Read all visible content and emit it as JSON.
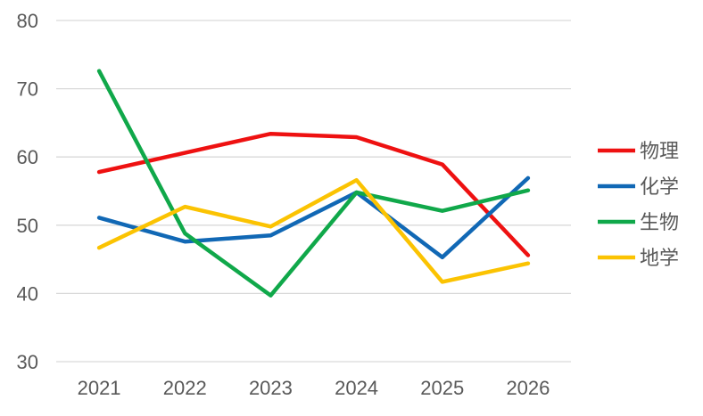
{
  "chart_data": {
    "type": "line",
    "categories": [
      "2021",
      "2022",
      "2023",
      "2024",
      "2025",
      "2026"
    ],
    "ylim": [
      30,
      80
    ],
    "yticks": [
      30,
      40,
      50,
      60,
      70,
      80
    ],
    "grid": true,
    "legend_position": "right",
    "series": [
      {
        "name": "物理",
        "color": "#ee1111",
        "values": [
          57.8,
          60.6,
          63.4,
          62.9,
          58.9,
          45.6
        ]
      },
      {
        "name": "化学",
        "color": "#1168b5",
        "values": [
          51.1,
          47.6,
          48.5,
          54.8,
          45.3,
          56.9
        ]
      },
      {
        "name": "生物",
        "color": "#10a84a",
        "values": [
          72.6,
          48.8,
          39.7,
          54.8,
          52.1,
          55.1
        ]
      },
      {
        "name": "地学",
        "color": "#fbc302",
        "values": [
          46.7,
          52.7,
          49.8,
          56.6,
          41.7,
          44.4
        ]
      }
    ]
  }
}
